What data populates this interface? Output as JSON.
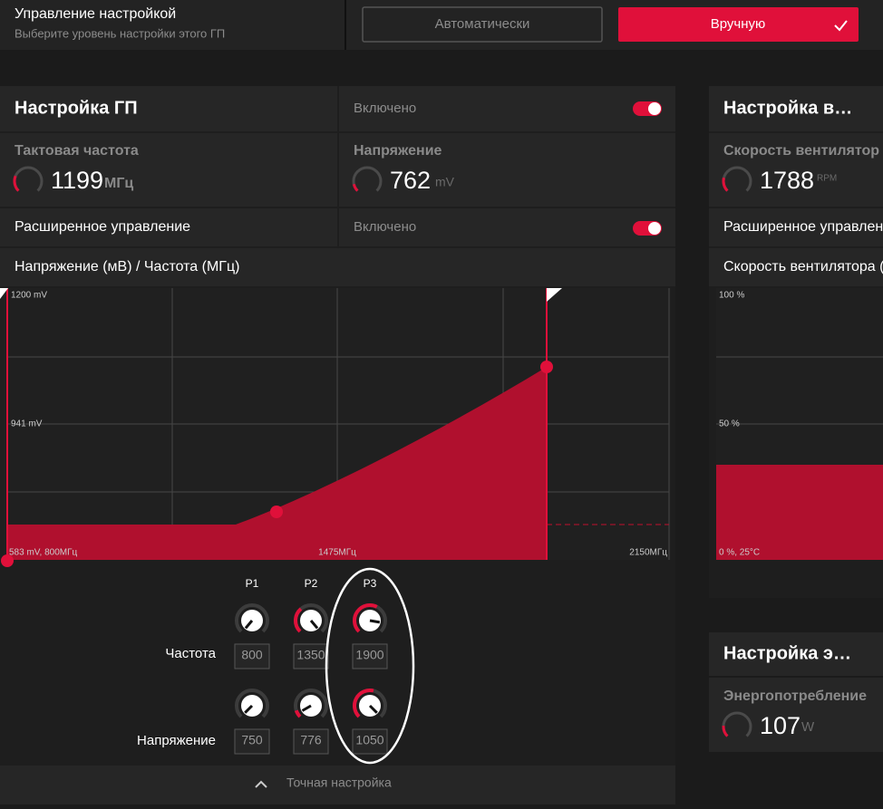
{
  "header": {
    "title": "Управление настройкой",
    "subtitle": "Выберите уровень настройки этого ГП",
    "buttons": [
      "Автоматически",
      "Вручную"
    ]
  },
  "gpu_panel": {
    "title": "Настройка ГП",
    "status": "Включено",
    "clock": {
      "label": "Тактовая частота",
      "value": 1199,
      "unit": "МГц"
    },
    "voltage": {
      "label": "Напряжение",
      "value": 762,
      "unit": "mV"
    },
    "advanced": {
      "label": "Расширенное управление",
      "status": "Включено"
    },
    "curve": {
      "title": "Напряжение (мВ) / Частота (МГц)",
      "y_top": "1200 mV",
      "y_mid": "941 mV",
      "origin": "583 mV, 800МГц",
      "x_mid": "1475МГц",
      "x_right": "2150МГц"
    },
    "states": {
      "headers": [
        "P1",
        "P2",
        "P3"
      ],
      "rows": [
        {
          "label": "Частота",
          "values": [
            800,
            1350,
            1900
          ]
        },
        {
          "label": "Напряжение",
          "values": [
            750,
            776,
            1050
          ]
        }
      ]
    },
    "footer": "Точная настройка"
  },
  "fan_panel": {
    "title": "Настройка в…",
    "speed": {
      "label": "Скорость вентилятор",
      "value": 1788,
      "unit": "RPM"
    },
    "advanced": {
      "label": "Расширенное управлени"
    },
    "curve": {
      "title": "Скорость вентилятора (L",
      "y_top": "100 %",
      "y_mid": "50 %",
      "origin": "0 %, 25°C"
    }
  },
  "power_panel": {
    "title": "Настройка э…",
    "power": {
      "label": "Энергопотребление",
      "value": 107,
      "unit": "W"
    }
  }
}
